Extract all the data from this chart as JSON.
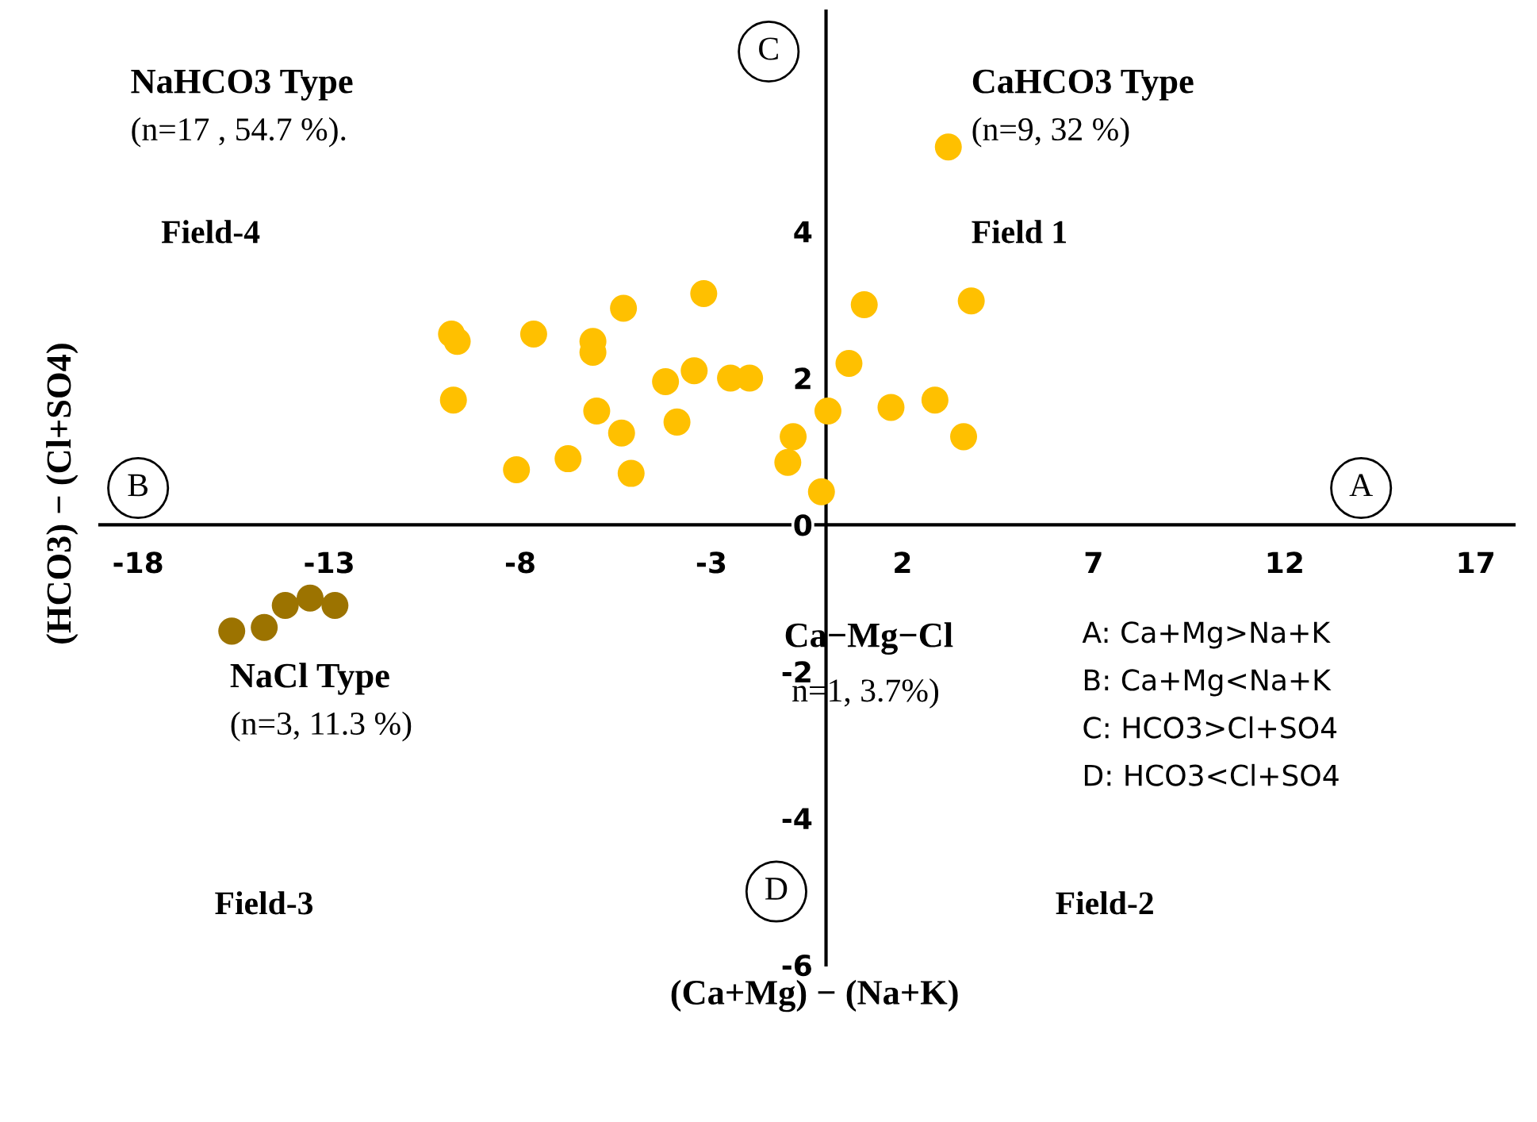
{
  "chart_data": {
    "type": "scatter",
    "marker": "circle",
    "grid": false,
    "legend": false,
    "xlabel": "(Ca+Mg) − (Na+K)",
    "ylabel": "(HCO3) − (Cl+SO4)",
    "xlim": [
      -19,
      18
    ],
    "ylim": [
      -6,
      7
    ],
    "xticks": [
      -18,
      -13,
      -8,
      -3,
      2,
      7,
      12,
      17
    ],
    "yticks": [
      -6,
      -4,
      -2,
      0,
      2,
      4
    ],
    "series": [
      {
        "color": "#ffc000",
        "x": [
          3.2,
          -3.2,
          3.8,
          1.0,
          -5.3,
          -9.8,
          -9.65,
          -7.65,
          -6.1,
          -6.1,
          0.6,
          -3.45,
          -4.2,
          -2.5,
          -2.0,
          -9.75,
          2.85,
          1.7,
          -6.0,
          0.05,
          -3.9,
          -5.35,
          -0.86,
          3.6,
          -6.75,
          -8.1,
          -5.1,
          -1.0,
          -0.12
        ],
        "values": [
          5.15,
          3.15,
          3.05,
          3.0,
          2.95,
          2.6,
          2.5,
          2.6,
          2.5,
          2.35,
          2.2,
          2.1,
          1.95,
          2.0,
          2.0,
          1.7,
          1.7,
          1.6,
          1.55,
          1.55,
          1.4,
          1.25,
          1.2,
          1.2,
          0.9,
          0.75,
          0.7,
          0.85,
          0.45
        ]
      },
      {
        "color": "#9c7300",
        "x": [
          -15.55,
          -14.7,
          -14.15,
          -13.5,
          -12.85
        ],
        "values": [
          -1.45,
          -1.4,
          -1.1,
          -1.0,
          -1.1
        ]
      }
    ],
    "annotations": [
      "NaHCO3 Type",
      "(n=17 , 54.7 %).",
      "CaHCO3 Type",
      "(n=9, 32 %)",
      "Field-4",
      "Field 1",
      "NaCl Type",
      "(n=3, 11.3 %)",
      "Ca−Mg−Cl",
      "n=1, 3.7%)",
      "Field-3",
      "Field-2",
      "A",
      "B",
      "C",
      "D",
      "A: Ca+Mg>Na+K",
      "B: Ca+Mg<Na+K",
      "C: HCO3>Cl+SO4",
      "D: HCO3<Cl+SO4"
    ]
  }
}
